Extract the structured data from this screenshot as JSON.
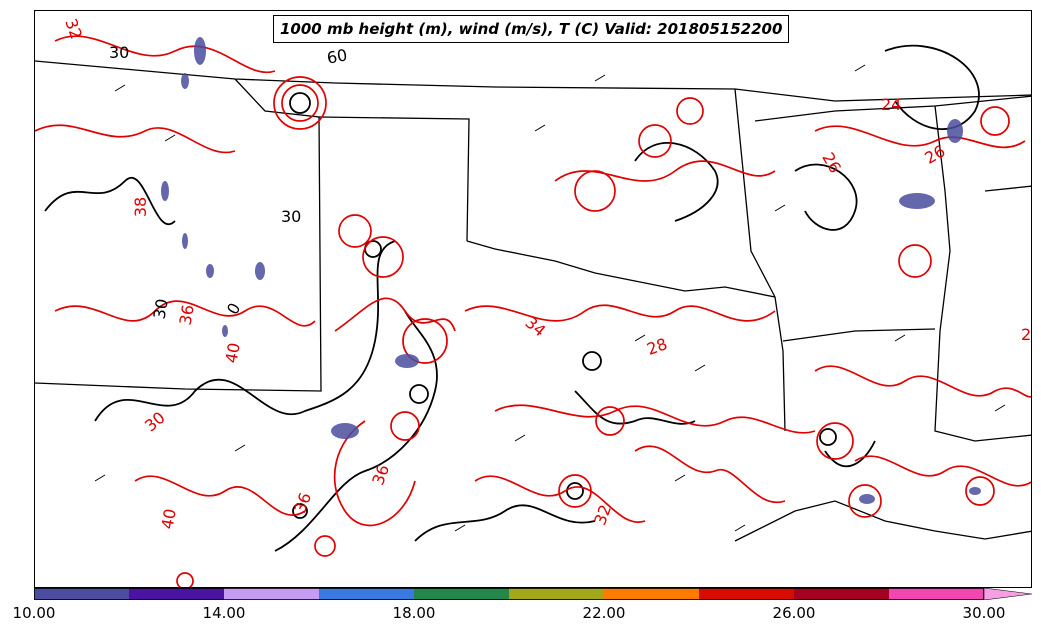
{
  "title": "1000 mb height (m), wind (m/s), T (C) Valid: 201805152200",
  "temperature_labels": [
    "32",
    "38",
    "36",
    "30",
    "40",
    "36",
    "36",
    "40",
    "34",
    "28",
    "32",
    "24",
    "26",
    "26",
    "2"
  ],
  "height_labels": [
    "30",
    "60",
    "30",
    "0",
    "30"
  ],
  "colorbar": {
    "colors": [
      "#4b4d9e",
      "#4a14a0",
      "#c59cf0",
      "#3b79e0",
      "#25864c",
      "#a2a81a",
      "#ff7b00",
      "#d60c00",
      "#a30022",
      "#f146b3",
      "#f6a0e3"
    ],
    "tick_labels": [
      "10.00",
      "14.00",
      "18.00",
      "22.00",
      "26.00",
      "30.00"
    ]
  },
  "colors": {
    "temperature_contour": "#e00000",
    "height_contour": "#000000",
    "shading": "#4b4d9e"
  }
}
